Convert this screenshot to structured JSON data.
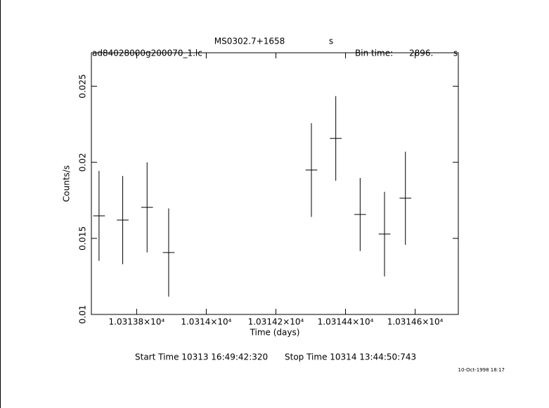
{
  "chart_data": {
    "type": "errorbar",
    "title": "MS0302.7+1658",
    "title_unit": "s",
    "file_name": "ad84028000g200070_1.lc",
    "bin_time_label": "Bin time:",
    "bin_time": "2896.",
    "bin_time_unit": "s",
    "x_label": "Time (days)",
    "y_label": "Counts/s",
    "start_time": "Start Time 10313 16:49:42:320",
    "stop_time": "Stop Time 10314 13:44:50:743",
    "timestamp": "10-Oct-1998 18:17",
    "xlim": [
      10313.67,
      10314.724
    ],
    "ylim": [
      0.01,
      0.0272
    ],
    "xticks": [
      {
        "value": 10313.8,
        "label": "1.03138×10⁴"
      },
      {
        "value": 10314.0,
        "label": "1.0314×10⁴"
      },
      {
        "value": 10314.2,
        "label": "1.03142×10⁴"
      },
      {
        "value": 10314.4,
        "label": "1.03144×10⁴"
      },
      {
        "value": 10314.6,
        "label": "1.03146×10⁴"
      }
    ],
    "yticks": [
      0.01,
      0.015,
      0.02,
      0.025
    ],
    "color": "#000000",
    "x": [
      10313.692,
      10313.76,
      10313.83,
      10313.892,
      10314.302,
      10314.372,
      10314.442,
      10314.512,
      10314.572
    ],
    "x_errors": [
      0.0168,
      0.0168,
      0.0168,
      0.0168,
      0.0168,
      0.0168,
      0.0168,
      0.0168,
      0.0168
    ],
    "values": [
      0.01648,
      0.0162,
      0.01704,
      0.01407,
      0.01949,
      0.02157,
      0.01657,
      0.01528,
      0.01764
    ],
    "errors": [
      0.00296,
      0.0029,
      0.00296,
      0.0029,
      0.00308,
      0.00278,
      0.0024,
      0.00278,
      0.00306
    ]
  }
}
